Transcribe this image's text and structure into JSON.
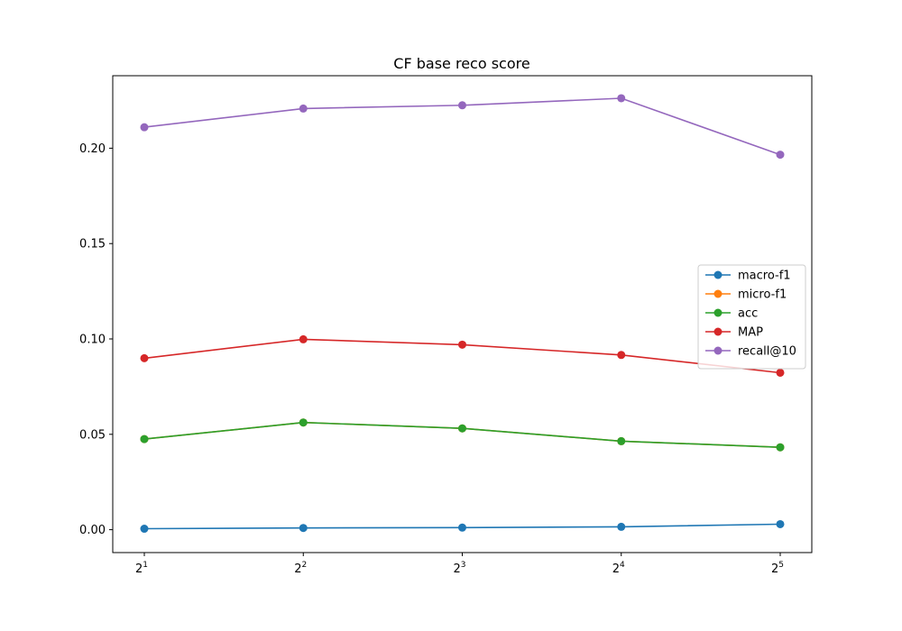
{
  "chart_data": {
    "type": "line",
    "title": "CF base reco score",
    "xlabel": "",
    "ylabel": "",
    "x_ticks": [
      {
        "base": "2",
        "exp": "1"
      },
      {
        "base": "2",
        "exp": "2"
      },
      {
        "base": "2",
        "exp": "3"
      },
      {
        "base": "2",
        "exp": "4"
      },
      {
        "base": "2",
        "exp": "5"
      }
    ],
    "x_scale": "log2",
    "x": [
      2,
      4,
      8,
      16,
      32
    ],
    "ylim": [
      -0.012,
      0.238
    ],
    "y_ticks": [
      0.0,
      0.05,
      0.1,
      0.15,
      0.2
    ],
    "y_tick_labels": [
      "0.00",
      "0.05",
      "0.10",
      "0.15",
      "0.20"
    ],
    "grid": false,
    "legend_position": "center-right",
    "series": [
      {
        "name": "macro-f1",
        "color": "#1f77b4",
        "values": [
          0.0005,
          0.0009,
          0.0011,
          0.0015,
          0.0029
        ]
      },
      {
        "name": "micro-f1",
        "color": "#ff7f0e",
        "values": [
          0.0475,
          0.0562,
          0.0531,
          0.0464,
          0.0432
        ]
      },
      {
        "name": "acc",
        "color": "#2ca02c",
        "values": [
          0.0475,
          0.0562,
          0.0531,
          0.0464,
          0.0432
        ]
      },
      {
        "name": "MAP",
        "color": "#d62728",
        "values": [
          0.0899,
          0.0998,
          0.097,
          0.0916,
          0.0823
        ]
      },
      {
        "name": "recall@10",
        "color": "#9467bd",
        "values": [
          0.211,
          0.2208,
          0.2225,
          0.2262,
          0.1966
        ]
      }
    ]
  }
}
